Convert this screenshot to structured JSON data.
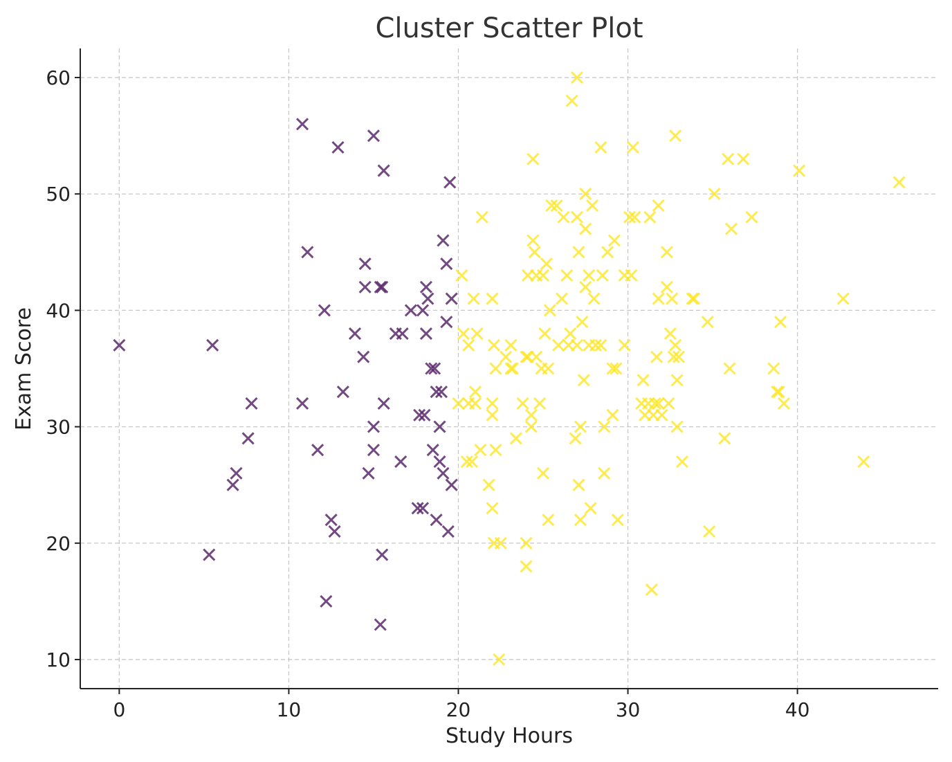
{
  "chart_data": {
    "type": "scatter",
    "title": "Cluster Scatter Plot",
    "xlabel": "Study Hours",
    "ylabel": "Exam Score",
    "xlim": [
      -2.3,
      48.3
    ],
    "ylim": [
      7.5,
      62.5
    ],
    "xticks": [
      0,
      10,
      20,
      30,
      40
    ],
    "yticks": [
      10,
      20,
      30,
      40,
      50,
      60
    ],
    "grid": true,
    "marker": "x",
    "series": [
      {
        "color": "#5b2a6c",
        "points": [
          [
            0,
            37
          ],
          [
            5.5,
            37
          ],
          [
            5.3,
            19
          ],
          [
            6.7,
            25
          ],
          [
            6.9,
            26
          ],
          [
            7.6,
            29
          ],
          [
            7.8,
            32
          ],
          [
            10.8,
            32
          ],
          [
            10.8,
            56
          ],
          [
            11.1,
            45
          ],
          [
            11.7,
            28
          ],
          [
            12.1,
            40
          ],
          [
            12.2,
            15
          ],
          [
            12.5,
            22
          ],
          [
            12.7,
            21
          ],
          [
            12.9,
            54
          ],
          [
            13.2,
            33
          ],
          [
            13.9,
            38
          ],
          [
            14.4,
            36
          ],
          [
            14.5,
            42
          ],
          [
            14.5,
            44
          ],
          [
            14.7,
            26
          ],
          [
            15.0,
            55
          ],
          [
            15.0,
            30
          ],
          [
            15.0,
            28
          ],
          [
            15.4,
            42
          ],
          [
            15.5,
            42
          ],
          [
            15.4,
            13
          ],
          [
            15.5,
            19
          ],
          [
            15.6,
            52
          ],
          [
            15.6,
            32
          ],
          [
            16.3,
            38
          ],
          [
            16.6,
            27
          ],
          [
            16.7,
            38
          ],
          [
            17.2,
            40
          ],
          [
            17.6,
            23
          ],
          [
            17.7,
            31
          ],
          [
            17.9,
            23
          ],
          [
            17.9,
            40
          ],
          [
            18.0,
            31
          ],
          [
            18.1,
            42
          ],
          [
            18.1,
            38
          ],
          [
            18.2,
            41
          ],
          [
            18.4,
            35
          ],
          [
            18.5,
            28
          ],
          [
            18.6,
            35
          ],
          [
            18.7,
            33
          ],
          [
            18.7,
            22
          ],
          [
            18.9,
            30
          ],
          [
            18.9,
            27
          ],
          [
            19.0,
            33
          ],
          [
            19.1,
            26
          ],
          [
            19.1,
            46
          ],
          [
            19.3,
            39
          ],
          [
            19.3,
            44
          ],
          [
            19.4,
            21
          ],
          [
            19.5,
            51
          ],
          [
            19.6,
            41
          ],
          [
            19.6,
            25
          ]
        ]
      },
      {
        "color": "#fde725",
        "points": [
          [
            20.0,
            32
          ],
          [
            20.2,
            43
          ],
          [
            20.3,
            38
          ],
          [
            20.5,
            27
          ],
          [
            20.6,
            32
          ],
          [
            20.6,
            37
          ],
          [
            20.8,
            27
          ],
          [
            20.9,
            41
          ],
          [
            21.0,
            33
          ],
          [
            21.0,
            32
          ],
          [
            21.1,
            38
          ],
          [
            21.3,
            28
          ],
          [
            21.4,
            48
          ],
          [
            21.8,
            25
          ],
          [
            22.0,
            41
          ],
          [
            22.0,
            23
          ],
          [
            22.0,
            32
          ],
          [
            22.0,
            31
          ],
          [
            22.1,
            20
          ],
          [
            22.1,
            37
          ],
          [
            22.2,
            28
          ],
          [
            22.2,
            35
          ],
          [
            22.4,
            10
          ],
          [
            22.5,
            20
          ],
          [
            22.8,
            36
          ],
          [
            23.1,
            37
          ],
          [
            23.1,
            35
          ],
          [
            23.2,
            35
          ],
          [
            23.4,
            29
          ],
          [
            23.8,
            32
          ],
          [
            24.0,
            18
          ],
          [
            24.0,
            20
          ],
          [
            24.0,
            36
          ],
          [
            24.1,
            43
          ],
          [
            24.1,
            36
          ],
          [
            24.3,
            31
          ],
          [
            24.3,
            30
          ],
          [
            24.4,
            53
          ],
          [
            24.4,
            46
          ],
          [
            24.5,
            45
          ],
          [
            24.6,
            36
          ],
          [
            24.6,
            43
          ],
          [
            24.8,
            32
          ],
          [
            24.9,
            35
          ],
          [
            25.0,
            26
          ],
          [
            25.0,
            43
          ],
          [
            25.1,
            38
          ],
          [
            25.2,
            44
          ],
          [
            25.3,
            22
          ],
          [
            25.3,
            35
          ],
          [
            25.4,
            40
          ],
          [
            25.5,
            49
          ],
          [
            25.8,
            49
          ],
          [
            25.9,
            37
          ],
          [
            26.1,
            41
          ],
          [
            26.2,
            48
          ],
          [
            26.4,
            43
          ],
          [
            26.5,
            37
          ],
          [
            26.6,
            38
          ],
          [
            26.7,
            58
          ],
          [
            26.9,
            29
          ],
          [
            27.0,
            37
          ],
          [
            27.0,
            60
          ],
          [
            27.0,
            48
          ],
          [
            27.1,
            45
          ],
          [
            27.1,
            25
          ],
          [
            27.2,
            22
          ],
          [
            27.2,
            30
          ],
          [
            27.3,
            39
          ],
          [
            27.4,
            34
          ],
          [
            27.5,
            42
          ],
          [
            27.5,
            47
          ],
          [
            27.5,
            50
          ],
          [
            27.7,
            43
          ],
          [
            27.7,
            37
          ],
          [
            27.8,
            23
          ],
          [
            27.9,
            49
          ],
          [
            28.0,
            41
          ],
          [
            28.1,
            37
          ],
          [
            28.4,
            37
          ],
          [
            28.4,
            54
          ],
          [
            28.5,
            43
          ],
          [
            28.6,
            30
          ],
          [
            28.6,
            26
          ],
          [
            28.8,
            45
          ],
          [
            29.1,
            35
          ],
          [
            29.1,
            31
          ],
          [
            29.2,
            46
          ],
          [
            29.3,
            35
          ],
          [
            29.4,
            22
          ],
          [
            29.8,
            37
          ],
          [
            29.8,
            43
          ],
          [
            30.1,
            48
          ],
          [
            30.2,
            43
          ],
          [
            30.3,
            54
          ],
          [
            30.4,
            48
          ],
          [
            30.8,
            32
          ],
          [
            30.9,
            34
          ],
          [
            31.0,
            31
          ],
          [
            31.2,
            32
          ],
          [
            31.3,
            48
          ],
          [
            31.4,
            16
          ],
          [
            31.5,
            31
          ],
          [
            31.6,
            32
          ],
          [
            31.7,
            36
          ],
          [
            31.8,
            49
          ],
          [
            31.8,
            41
          ],
          [
            31.8,
            32
          ],
          [
            32.0,
            31
          ],
          [
            32.3,
            42
          ],
          [
            32.3,
            45
          ],
          [
            32.4,
            32
          ],
          [
            32.5,
            38
          ],
          [
            32.6,
            41
          ],
          [
            32.7,
            36
          ],
          [
            32.8,
            37
          ],
          [
            32.8,
            55
          ],
          [
            32.9,
            30
          ],
          [
            32.9,
            34
          ],
          [
            33.0,
            36
          ],
          [
            33.2,
            27
          ],
          [
            33.8,
            41
          ],
          [
            33.9,
            41
          ],
          [
            34.7,
            39
          ],
          [
            34.8,
            21
          ],
          [
            35.1,
            50
          ],
          [
            35.7,
            29
          ],
          [
            35.9,
            53
          ],
          [
            36.0,
            35
          ],
          [
            36.1,
            47
          ],
          [
            36.8,
            53
          ],
          [
            37.3,
            48
          ],
          [
            38.6,
            35
          ],
          [
            38.8,
            33
          ],
          [
            38.9,
            33
          ],
          [
            39.0,
            39
          ],
          [
            39.2,
            32
          ],
          [
            40.1,
            52
          ],
          [
            42.7,
            41
          ],
          [
            43.9,
            27
          ],
          [
            46.0,
            51
          ]
        ]
      }
    ]
  }
}
